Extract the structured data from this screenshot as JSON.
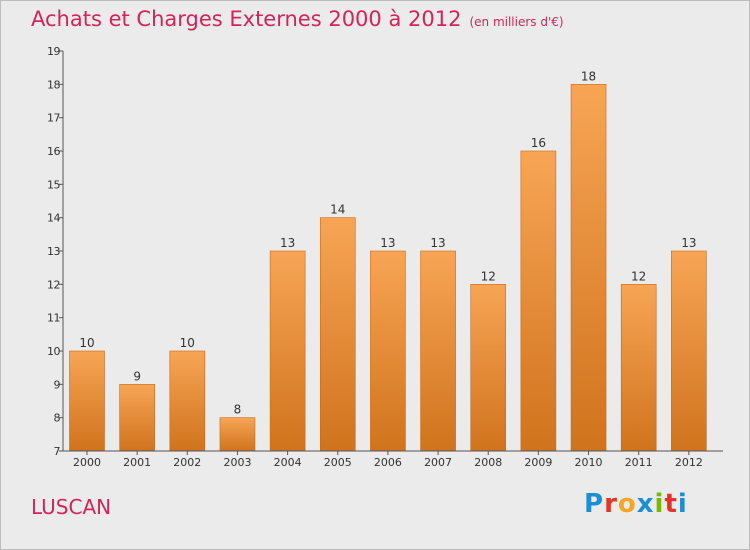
{
  "header": {
    "title": "Achats et Charges Externes 2000 à 2012",
    "unit": "(en milliers d'€)"
  },
  "footer": {
    "commune": "LUSCAN",
    "logo_text": "Proxiti"
  },
  "colors": {
    "title": "#d2245a",
    "bar_light": "#f7a555",
    "bar_dark": "#d0731d",
    "background": "#ebebeb",
    "axis": "#555555"
  },
  "chart_data": {
    "type": "bar",
    "title": "Achats et Charges Externes 2000 à 2012",
    "subtitle": "(en milliers d'€)",
    "xlabel": "",
    "ylabel": "",
    "categories": [
      "2000",
      "2001",
      "2002",
      "2003",
      "2004",
      "2005",
      "2006",
      "2007",
      "2008",
      "2009",
      "2010",
      "2011",
      "2012"
    ],
    "values": [
      10,
      9,
      10,
      8,
      13,
      14,
      13,
      13,
      12,
      16,
      18,
      12,
      13
    ],
    "ylim": [
      7,
      19
    ],
    "yticks": [
      7,
      8,
      9,
      10,
      11,
      12,
      13,
      14,
      15,
      16,
      17,
      18,
      19
    ],
    "grid": false,
    "data_labels": true
  }
}
